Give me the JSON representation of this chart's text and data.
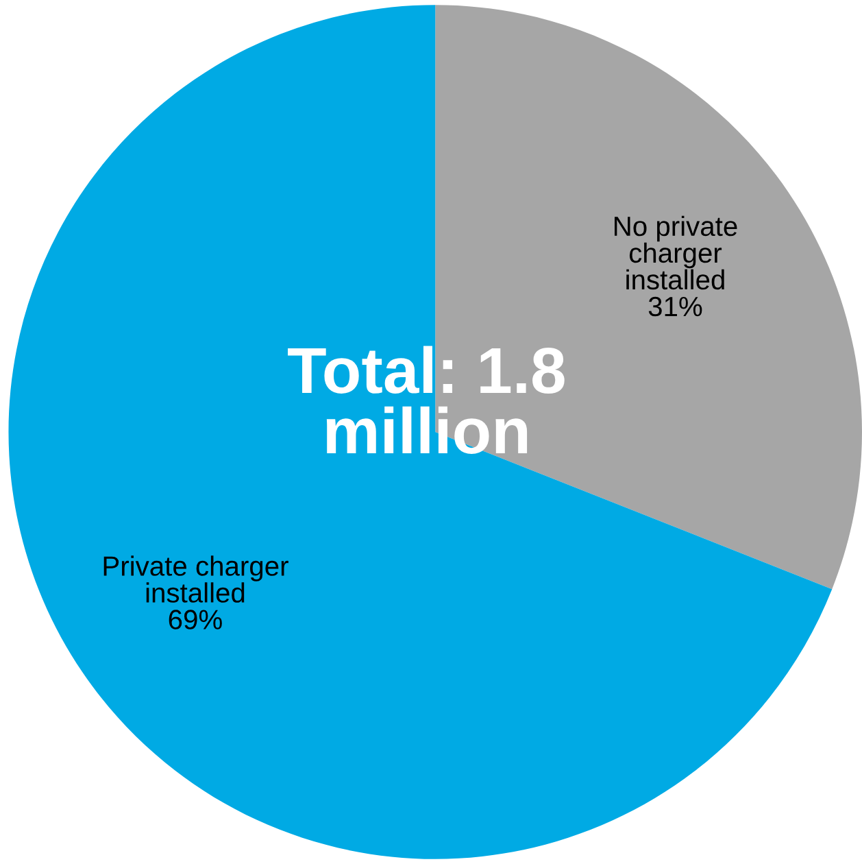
{
  "chart_data": {
    "type": "pie",
    "categories": [
      "No private\ncharger\ninstalled",
      "Private charger\ninstalled"
    ],
    "values": [
      31,
      69
    ],
    "value_labels": [
      "31%",
      "69%"
    ],
    "colors": [
      "#a6a6a6",
      "#00aae4"
    ],
    "annotations": [
      "Total: 1.8\nmillion"
    ]
  }
}
